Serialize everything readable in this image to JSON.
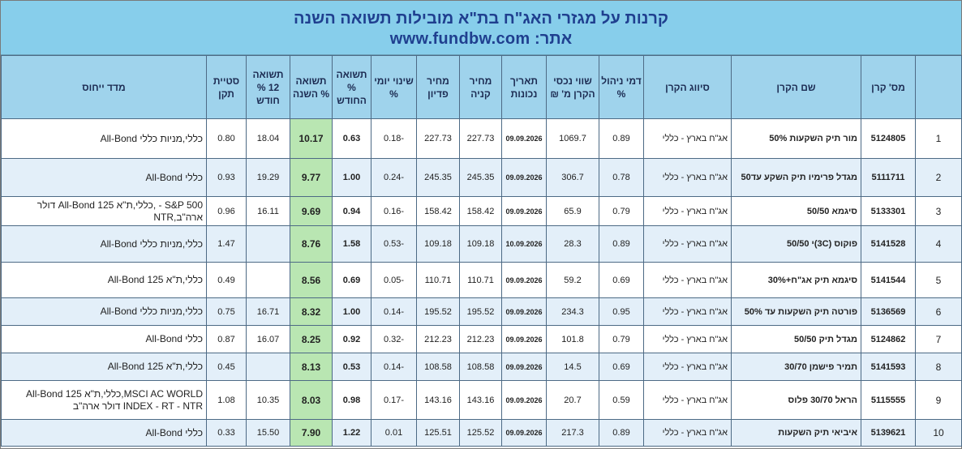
{
  "banner": {
    "title": "קרנות על מגזרי האג\"ח בת\"א מובילות תשואה השנה",
    "site_label": "אתר:",
    "site_url": "www.fundbw.com"
  },
  "headers": {
    "rank": "",
    "fund_id": "מס' קרן",
    "fund_name": "שם הקרן",
    "classification": "סיווג הקרן",
    "mgmt_fee": "דמי ניהול %",
    "assets": "שווי נכסי הקרן מ' ₪",
    "date": "תאריך נכונות",
    "buy_price": "מחיר קניה",
    "redeem_price": "מחיר פדיון",
    "daily_change": "שינוי יומי %",
    "month_return": "תשואה % החודש",
    "year_return": "תשואה % השנה",
    "ret_12m": "תשואה 12 % חודש",
    "std_dev": "סטיית תקן",
    "benchmark": "מדד ייחוס"
  },
  "rows": [
    {
      "rank": "1",
      "fund_id": "5124805",
      "fund_name": "מור תיק השקעות 50%",
      "classification": "אג\"ח בארץ - כללי",
      "mgmt_fee": "0.89",
      "assets": "1069.7",
      "date": "09.09.2026",
      "buy_price": "227.73",
      "redeem_price": "227.73",
      "daily_change": "-0.18",
      "month_return": "0.63",
      "year_return": "10.17",
      "ret_12m": "18.04",
      "std_dev": "0.80",
      "benchmark": "כללי,מניות כללי All-Bond"
    },
    {
      "rank": "2",
      "fund_id": "5111711",
      "fund_name": "מגדל פרימיו תיק השקע עד50",
      "classification": "אג\"ח בארץ - כללי",
      "mgmt_fee": "0.78",
      "assets": "306.7",
      "date": "09.09.2026",
      "buy_price": "245.35",
      "redeem_price": "245.35",
      "daily_change": "-0.24",
      "month_return": "1.00",
      "year_return": "9.77",
      "ret_12m": "19.29",
      "std_dev": "0.93",
      "benchmark": "כללי All-Bond"
    },
    {
      "rank": "3",
      "fund_id": "5133301",
      "fund_name": "סיגמא 50/50",
      "classification": "אג\"ח בארץ - כללי",
      "mgmt_fee": "0.79",
      "assets": "65.9",
      "date": "09.09.2026",
      "buy_price": "158.42",
      "redeem_price": "158.42",
      "daily_change": "-0.16",
      "month_return": "0.94",
      "year_return": "9.69",
      "ret_12m": "16.11",
      "std_dev": "0.96",
      "benchmark": "S&P 500 - ,כללי,ת\"א 125 All-Bond דולר ארה\"ב,NTR"
    },
    {
      "rank": "4",
      "fund_id": "5141528",
      "fund_name": "פוקוס (3C)י 50/50",
      "classification": "אג\"ח בארץ - כללי",
      "mgmt_fee": "0.89",
      "assets": "28.3",
      "date": "10.09.2026",
      "buy_price": "109.18",
      "redeem_price": "109.18",
      "daily_change": "-0.53",
      "month_return": "1.58",
      "year_return": "8.76",
      "ret_12m": "",
      "std_dev": "1.47",
      "benchmark": "כללי,מניות כללי All-Bond"
    },
    {
      "rank": "5",
      "fund_id": "5141544",
      "fund_name": "סיגמא תיק אג\"ח+30%",
      "classification": "אג\"ח בארץ - כללי",
      "mgmt_fee": "0.69",
      "assets": "59.2",
      "date": "09.09.2026",
      "buy_price": "110.71",
      "redeem_price": "110.71",
      "daily_change": "-0.05",
      "month_return": "0.69",
      "year_return": "8.56",
      "ret_12m": "",
      "std_dev": "0.49",
      "benchmark": "כללי,ת\"א 125 All-Bond"
    },
    {
      "rank": "6",
      "fund_id": "5136569",
      "fund_name": "פורטה תיק השקעות עד 50%",
      "classification": "אג\"ח בארץ - כללי",
      "mgmt_fee": "0.95",
      "assets": "234.3",
      "date": "09.09.2026",
      "buy_price": "195.52",
      "redeem_price": "195.52",
      "daily_change": "-0.14",
      "month_return": "1.00",
      "year_return": "8.32",
      "ret_12m": "16.71",
      "std_dev": "0.75",
      "benchmark": "כללי,מניות כללי All-Bond"
    },
    {
      "rank": "7",
      "fund_id": "5124862",
      "fund_name": "מגדל תיק 50/50",
      "classification": "אג\"ח בארץ - כללי",
      "mgmt_fee": "0.79",
      "assets": "101.8",
      "date": "09.09.2026",
      "buy_price": "212.23",
      "redeem_price": "212.23",
      "daily_change": "-0.32",
      "month_return": "0.92",
      "year_return": "8.25",
      "ret_12m": "16.07",
      "std_dev": "0.87",
      "benchmark": "כללי All-Bond"
    },
    {
      "rank": "8",
      "fund_id": "5141593",
      "fund_name": "תמיר פישמן 30/70",
      "classification": "אג\"ח בארץ - כללי",
      "mgmt_fee": "0.69",
      "assets": "14.5",
      "date": "09.09.2026",
      "buy_price": "108.58",
      "redeem_price": "108.58",
      "daily_change": "-0.14",
      "month_return": "0.53",
      "year_return": "8.13",
      "ret_12m": "",
      "std_dev": "0.45",
      "benchmark": "כללי,ת\"א 125 All-Bond"
    },
    {
      "rank": "9",
      "fund_id": "5115555",
      "fund_name": "הראל 30/70 פלוס",
      "classification": "אג\"ח בארץ - כללי",
      "mgmt_fee": "0.59",
      "assets": "20.7",
      "date": "09.09.2026",
      "buy_price": "143.16",
      "redeem_price": "143.16",
      "daily_change": "-0.17",
      "month_return": "0.98",
      "year_return": "8.03",
      "ret_12m": "10.35",
      "std_dev": "1.08",
      "benchmark": "MSCI AC WORLD,כללי,ת\"א 125 All-Bond INDEX - RT - NTR דולר ארה\"ב"
    },
    {
      "rank": "10",
      "fund_id": "5139621",
      "fund_name": "איביאי תיק השקעות",
      "classification": "אג\"ח בארץ - כללי",
      "mgmt_fee": "0.89",
      "assets": "217.3",
      "date": "09.09.2026",
      "buy_price": "125.52",
      "redeem_price": "125.51",
      "daily_change": "0.01",
      "month_return": "1.22",
      "year_return": "7.90",
      "ret_12m": "15.50",
      "std_dev": "0.33",
      "benchmark": "כללי All-Bond"
    }
  ],
  "colors": {
    "banner_bg": "#87ceeb",
    "header_bg": "#9fd3ec",
    "title_text": "#1f3f8f",
    "year_return_highlight": "#b9e6b2",
    "alt_row_bg": "#e3eff9"
  }
}
